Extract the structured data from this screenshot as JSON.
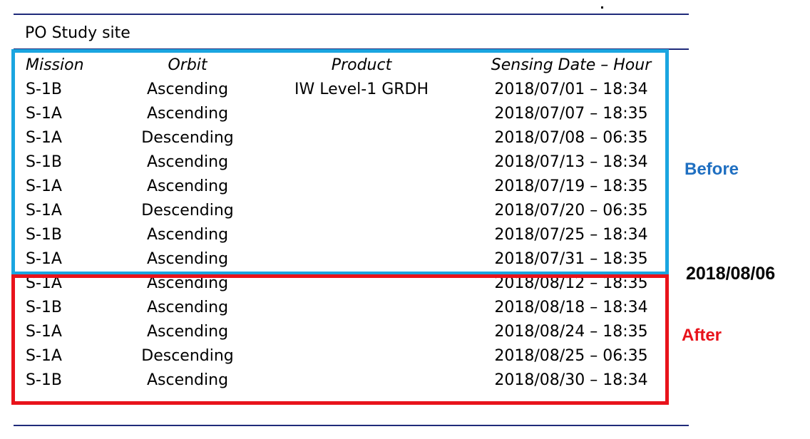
{
  "site_title": "PO Study site",
  "headers": {
    "mission": "Mission",
    "orbit": "Orbit",
    "product": "Product",
    "date": "Sensing Date – Hour"
  },
  "rows": [
    {
      "mission": "S-1B",
      "orbit": "Ascending",
      "product": "IW Level-1 GRDH",
      "date": "2018/07/01 – 18:34"
    },
    {
      "mission": "S-1A",
      "orbit": "Ascending",
      "product": "",
      "date": "2018/07/07 – 18:35"
    },
    {
      "mission": "S-1A",
      "orbit": "Descending",
      "product": "",
      "date": "2018/07/08 – 06:35"
    },
    {
      "mission": "S-1B",
      "orbit": "Ascending",
      "product": "",
      "date": "2018/07/13 – 18:34"
    },
    {
      "mission": "S-1A",
      "orbit": "Ascending",
      "product": "",
      "date": "2018/07/19 – 18:35"
    },
    {
      "mission": "S-1A",
      "orbit": "Descending",
      "product": "",
      "date": "2018/07/20 – 06:35"
    },
    {
      "mission": "S-1B",
      "orbit": "Ascending",
      "product": "",
      "date": "2018/07/25 – 18:34"
    },
    {
      "mission": "S-1A",
      "orbit": "Ascending",
      "product": "",
      "date": "2018/07/31 – 18:35"
    },
    {
      "mission": "S-1A",
      "orbit": "Ascending",
      "product": "",
      "date": "2018/08/12 – 18:35"
    },
    {
      "mission": "S-1B",
      "orbit": "Ascending",
      "product": "",
      "date": "2018/08/18 – 18:34"
    },
    {
      "mission": "S-1A",
      "orbit": "Ascending",
      "product": "",
      "date": "2018/08/24 – 18:35"
    },
    {
      "mission": "S-1A",
      "orbit": "Descending",
      "product": "",
      "date": "2018/08/25 – 06:35"
    },
    {
      "mission": "S-1B",
      "orbit": "Ascending",
      "product": "",
      "date": "2018/08/30 – 18:34"
    }
  ],
  "labels": {
    "before": "Before",
    "event_date": "2018/08/06",
    "after": "After"
  },
  "colors": {
    "before_box": "#1aa5e0",
    "after_box": "#e8131b",
    "before_text": "#1f6fc1",
    "after_text": "#e8131b",
    "rules": "#1f2a7a"
  }
}
